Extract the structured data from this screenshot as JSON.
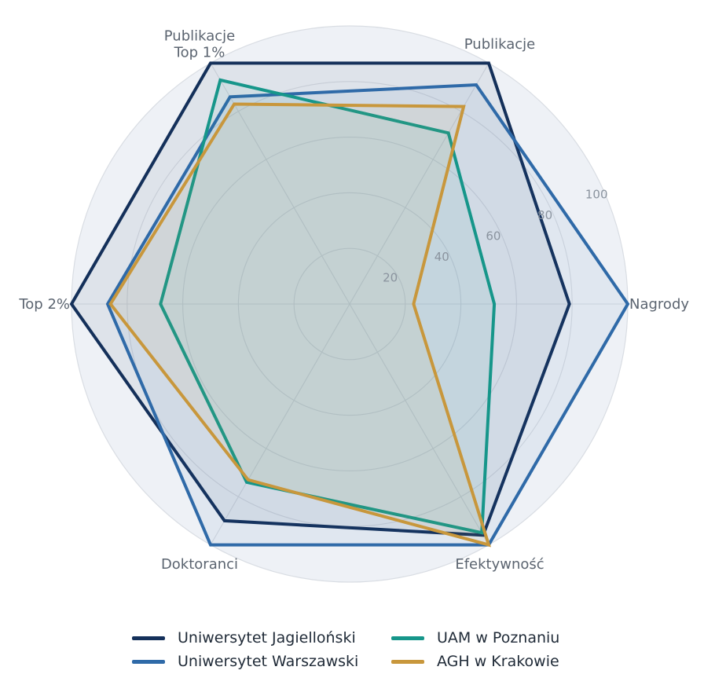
{
  "chart_data": {
    "type": "radar",
    "axes": [
      "Nagrody",
      "Publikacje",
      "Publikacje\nTop 1%",
      "Top 2%",
      "Doktoranci",
      "Efektywność"
    ],
    "r_ticks": [
      20,
      40,
      60,
      80,
      100
    ],
    "r_range": [
      0,
      100
    ],
    "grid": true,
    "legend_position": "bottom",
    "series": [
      {
        "name": "Uniwersytet Jagielloński",
        "color": "#14305a",
        "values": [
          79,
          100,
          100,
          100,
          90,
          96
        ]
      },
      {
        "name": "Uniwersytet Warszawski",
        "color": "#2f6aa8",
        "values": [
          100,
          91,
          86,
          87,
          100,
          100
        ]
      },
      {
        "name": "UAM w Poznaniu",
        "color": "#16968a",
        "values": [
          52,
          71,
          93,
          68,
          74,
          95
        ]
      },
      {
        "name": "AGH w Krakowie",
        "color": "#c8973c",
        "values": [
          23,
          82,
          83,
          86,
          73,
          100
        ]
      }
    ]
  }
}
